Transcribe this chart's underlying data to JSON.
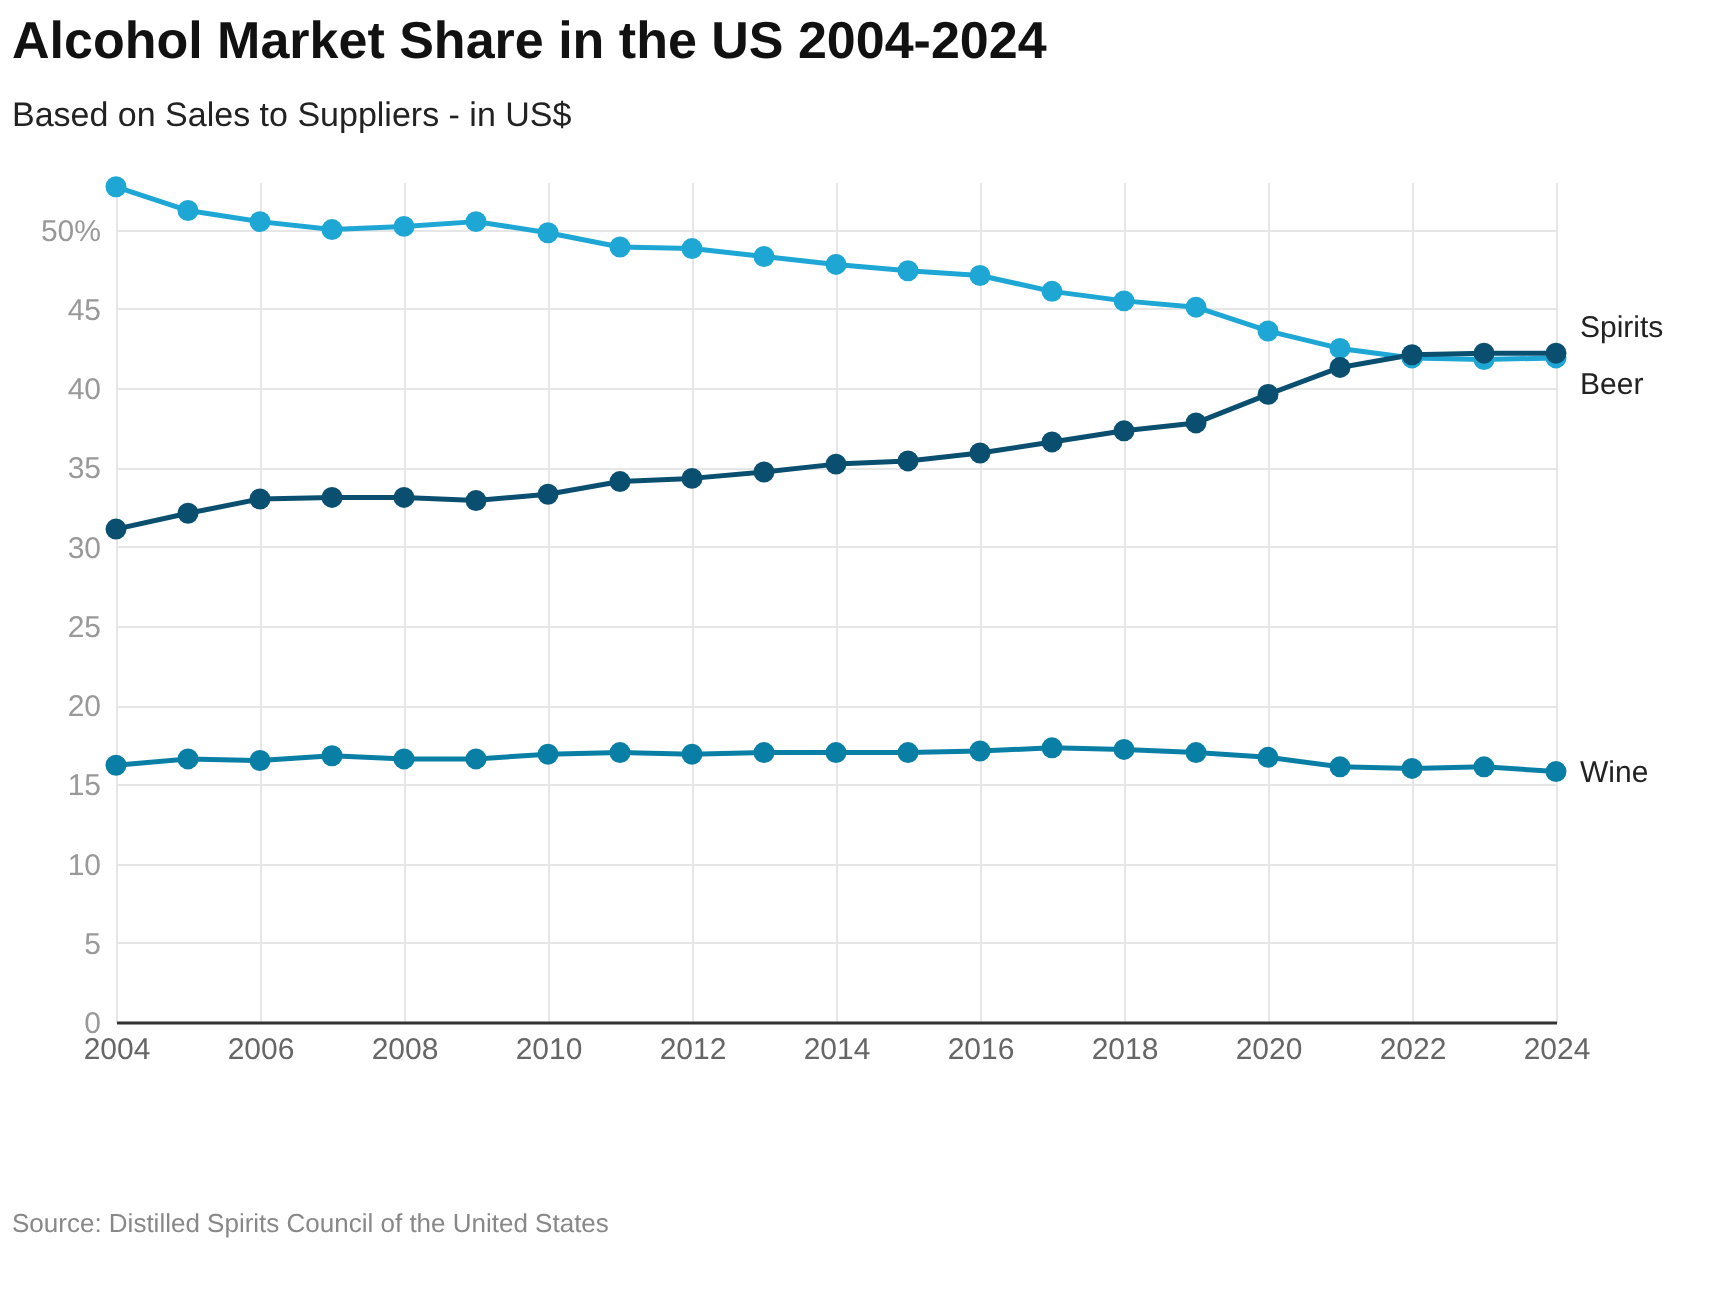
{
  "chart_data": {
    "type": "line",
    "title": "Alcohol Market Share in the US 2004-2024",
    "subtitle": "Based on Sales to Suppliers - in US$",
    "annotations": [
      "Source: Distilled Spirits Council of the United States"
    ],
    "x": [
      2004,
      2005,
      2006,
      2007,
      2008,
      2009,
      2010,
      2011,
      2012,
      2013,
      2014,
      2015,
      2016,
      2017,
      2018,
      2019,
      2020,
      2021,
      2022,
      2023,
      2024
    ],
    "series": [
      {
        "name": "Beer",
        "color": "#1ea6d4",
        "values": [
          52.7,
          51.2,
          50.5,
          50.0,
          50.2,
          50.5,
          49.8,
          48.9,
          48.8,
          48.3,
          47.8,
          47.4,
          47.1,
          46.1,
          45.5,
          45.1,
          43.6,
          42.5,
          41.9,
          41.8,
          41.9
        ]
      },
      {
        "name": "Spirits",
        "color": "#0a4f70",
        "values": [
          31.1,
          32.1,
          33.0,
          33.1,
          33.1,
          32.9,
          33.3,
          34.1,
          34.3,
          34.7,
          35.2,
          35.4,
          35.9,
          36.6,
          37.3,
          37.8,
          39.6,
          41.3,
          42.1,
          42.2,
          42.2
        ]
      },
      {
        "name": "Wine",
        "color": "#0a7fa6",
        "values": [
          16.2,
          16.6,
          16.5,
          16.8,
          16.6,
          16.6,
          16.9,
          17.0,
          16.9,
          17.0,
          17.0,
          17.0,
          17.1,
          17.3,
          17.2,
          17.0,
          16.7,
          16.1,
          16.0,
          16.1,
          15.8
        ]
      }
    ],
    "xlim": [
      2004,
      2024
    ],
    "xticks": [
      2004,
      2006,
      2008,
      2010,
      2012,
      2014,
      2016,
      2018,
      2020,
      2022,
      2024
    ],
    "ylim": [
      0,
      53
    ],
    "yticks": [
      0,
      5,
      10,
      15,
      20,
      25,
      30,
      35,
      40,
      45,
      {
        "value": 50,
        "label": "50%"
      }
    ],
    "grid": true,
    "legend": false,
    "marker": "circle",
    "line_style": "solid"
  }
}
